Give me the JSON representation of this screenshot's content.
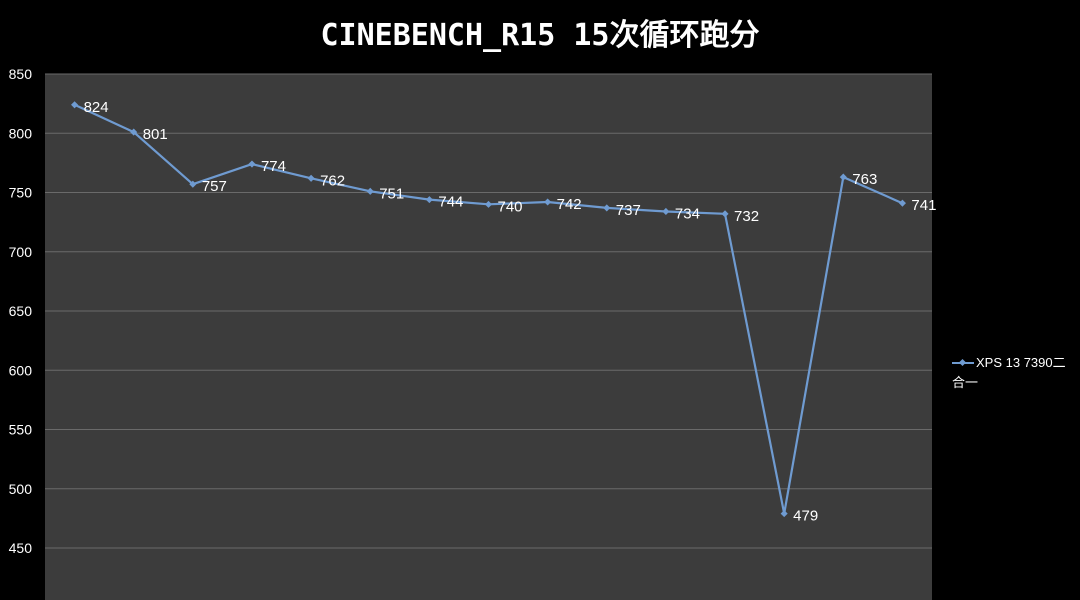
{
  "chart_data": {
    "type": "line",
    "title": "CINEBENCH_R15 15次循环跑分",
    "xlabel": "",
    "ylabel": "",
    "ylim": [
      450,
      850
    ],
    "yticks": [
      450,
      500,
      550,
      600,
      650,
      700,
      750,
      800,
      850
    ],
    "grid": true,
    "legend_position": "right",
    "series": [
      {
        "name": "XPS 13 7390二合一",
        "color": "#6f9bd1",
        "values": [
          824,
          801,
          757,
          774,
          762,
          751,
          744,
          740,
          742,
          737,
          734,
          732,
          479,
          763,
          741
        ],
        "data_labels": [
          "824",
          "801",
          "757",
          "774",
          "762",
          "751",
          "744",
          "740",
          "742",
          "737",
          "734",
          "732",
          "479",
          "763",
          "741"
        ]
      }
    ]
  },
  "colors": {
    "background": "#000000",
    "plot_area": "#3c3c3c",
    "gridline": "#6a6a6a",
    "text": "#ffffff"
  }
}
